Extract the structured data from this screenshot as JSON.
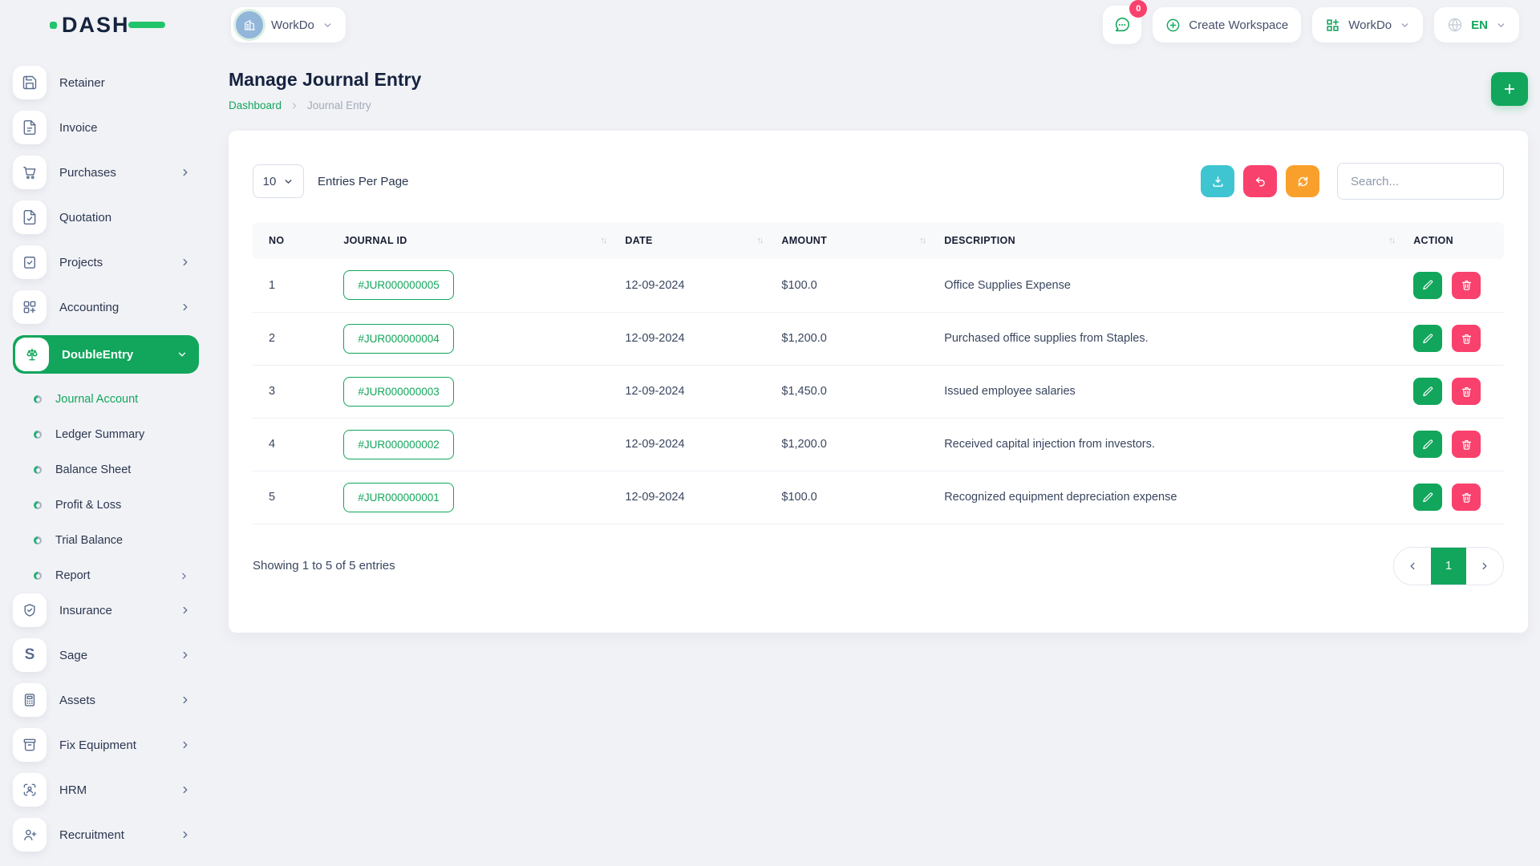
{
  "brand": {
    "logo_text": "DASH"
  },
  "header": {
    "workspace_selector": {
      "label": "WorkDo",
      "icon": "building-icon"
    },
    "messages_badge": "0",
    "create_workspace_label": "Create Workspace",
    "workdo_menu_label": "WorkDo",
    "language_code": "EN"
  },
  "sidebar": {
    "items": [
      {
        "label": "Retainer",
        "icon": "floppy-icon",
        "chevron": false
      },
      {
        "label": "Invoice",
        "icon": "invoice-icon",
        "chevron": false
      },
      {
        "label": "Purchases",
        "icon": "cart-icon",
        "chevron": true
      },
      {
        "label": "Quotation",
        "icon": "quotation-icon",
        "chevron": false
      },
      {
        "label": "Projects",
        "icon": "projects-icon",
        "chevron": true
      },
      {
        "label": "Accounting",
        "icon": "accounting-icon",
        "chevron": true
      },
      {
        "label": "DoubleEntry",
        "icon": "scales-icon",
        "chevron": true,
        "active": true,
        "expanded": true,
        "children": [
          {
            "label": "Journal Account",
            "active": true
          },
          {
            "label": "Ledger Summary"
          },
          {
            "label": "Balance Sheet"
          },
          {
            "label": "Profit & Loss"
          },
          {
            "label": "Trial Balance"
          },
          {
            "label": "Report",
            "chevron": true
          }
        ]
      },
      {
        "label": "Insurance",
        "icon": "shield-icon",
        "chevron": true
      },
      {
        "label": "Sage",
        "icon": "sage-icon",
        "chevron": true
      },
      {
        "label": "Assets",
        "icon": "calculator-icon",
        "chevron": true
      },
      {
        "label": "Fix Equipment",
        "icon": "equipment-icon",
        "chevron": true
      },
      {
        "label": "HRM",
        "icon": "hrm-icon",
        "chevron": true
      },
      {
        "label": "Recruitment",
        "icon": "recruitment-icon",
        "chevron": true
      }
    ]
  },
  "page": {
    "title": "Manage Journal Entry",
    "breadcrumb": [
      {
        "label": "Dashboard"
      },
      {
        "label": "Journal Entry"
      }
    ]
  },
  "toolbar": {
    "entries_per_page_value": "10",
    "entries_per_page_label": "Entries Per Page",
    "search_placeholder": "Search..."
  },
  "table": {
    "columns": [
      {
        "label": "NO",
        "sortable": false
      },
      {
        "label": "JOURNAL ID",
        "sortable": true
      },
      {
        "label": "DATE",
        "sortable": true
      },
      {
        "label": "AMOUNT",
        "sortable": true
      },
      {
        "label": "DESCRIPTION",
        "sortable": true
      },
      {
        "label": "ACTION",
        "sortable": false
      }
    ],
    "rows": [
      {
        "no": "1",
        "journal_id": "#JUR000000005",
        "date": "12-09-2024",
        "amount": "$100.0",
        "description": "Office Supplies Expense"
      },
      {
        "no": "2",
        "journal_id": "#JUR000000004",
        "date": "12-09-2024",
        "amount": "$1,200.0",
        "description": "Purchased office supplies from Staples."
      },
      {
        "no": "3",
        "journal_id": "#JUR000000003",
        "date": "12-09-2024",
        "amount": "$1,450.0",
        "description": "Issued employee salaries"
      },
      {
        "no": "4",
        "journal_id": "#JUR000000002",
        "date": "12-09-2024",
        "amount": "$1,200.0",
        "description": "Received capital injection from investors."
      },
      {
        "no": "5",
        "journal_id": "#JUR000000001",
        "date": "12-09-2024",
        "amount": "$100.0",
        "description": "Recognized equipment depreciation expense"
      }
    ],
    "footer": {
      "showing_text": "Showing 1 to 5 of 5 entries",
      "current_page": "1"
    }
  },
  "colors": {
    "primary_green": "#12a65c",
    "pink": "#f9416d",
    "cyan": "#3fc4d2",
    "orange": "#f9a02c"
  }
}
